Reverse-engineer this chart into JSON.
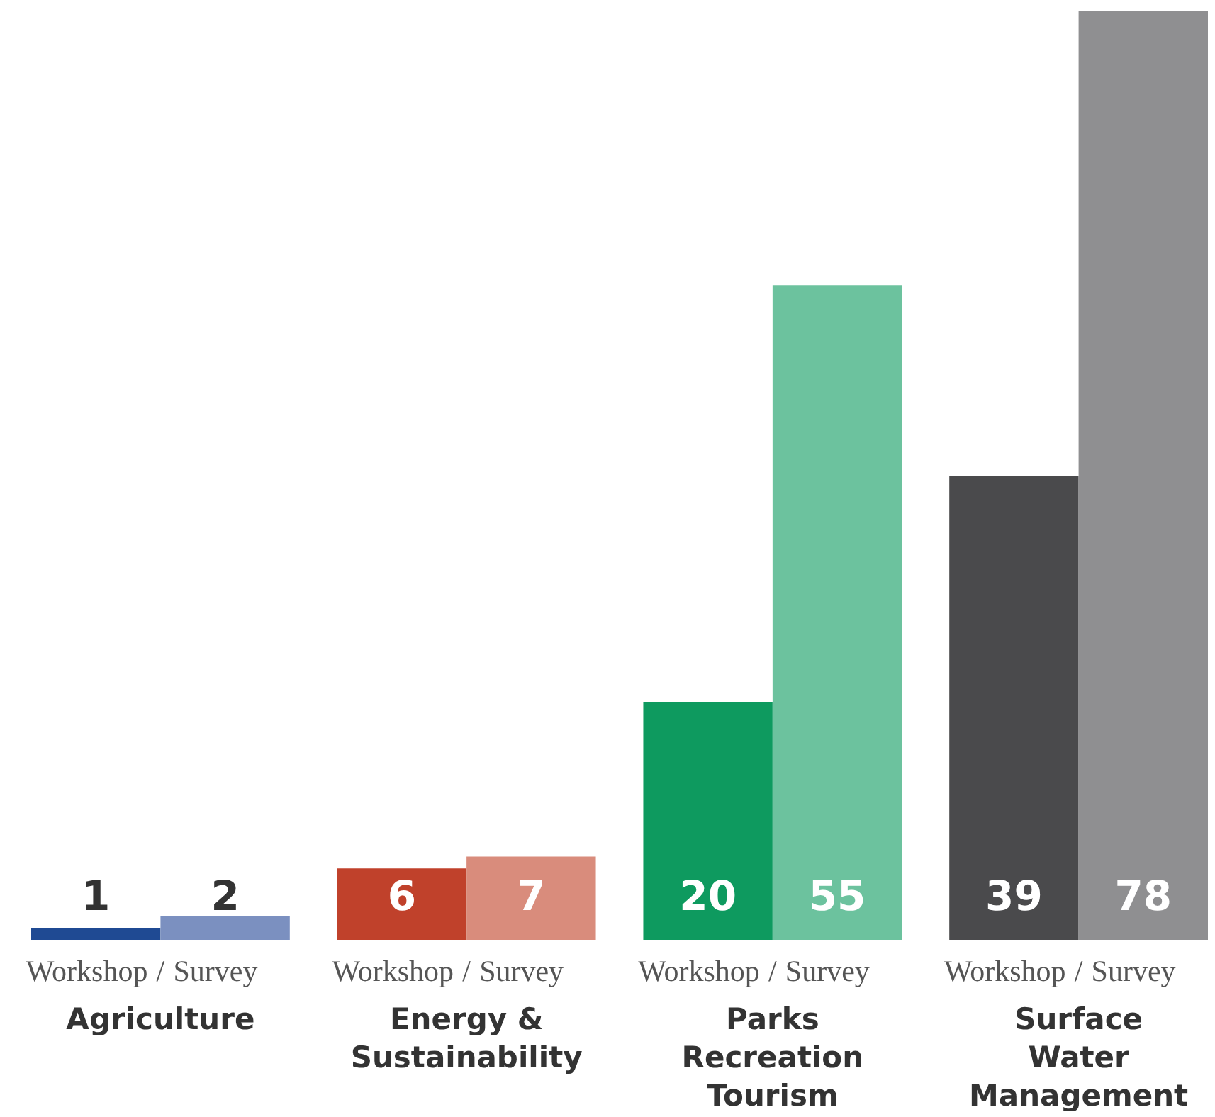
{
  "chart_data": {
    "type": "bar",
    "categories": [
      "Agriculture",
      "Energy & Sustainability",
      "Parks Recreation Tourism",
      "Surface Water Management"
    ],
    "series": [
      {
        "name": "Workshop",
        "colors": [
          "#1f4a93",
          "#c0412b",
          "#0e9a5f",
          "#4a4a4c"
        ],
        "values": [
          1,
          6,
          20,
          39
        ]
      },
      {
        "name": "Survey",
        "colors": [
          "#7b90c0",
          "#d98c7c",
          "#6cc29e",
          "#8f8f91"
        ],
        "values": [
          2,
          7,
          55,
          78
        ]
      }
    ],
    "data_labels": true,
    "annotations": [
      "/",
      "/",
      "/",
      "/"
    ]
  }
}
